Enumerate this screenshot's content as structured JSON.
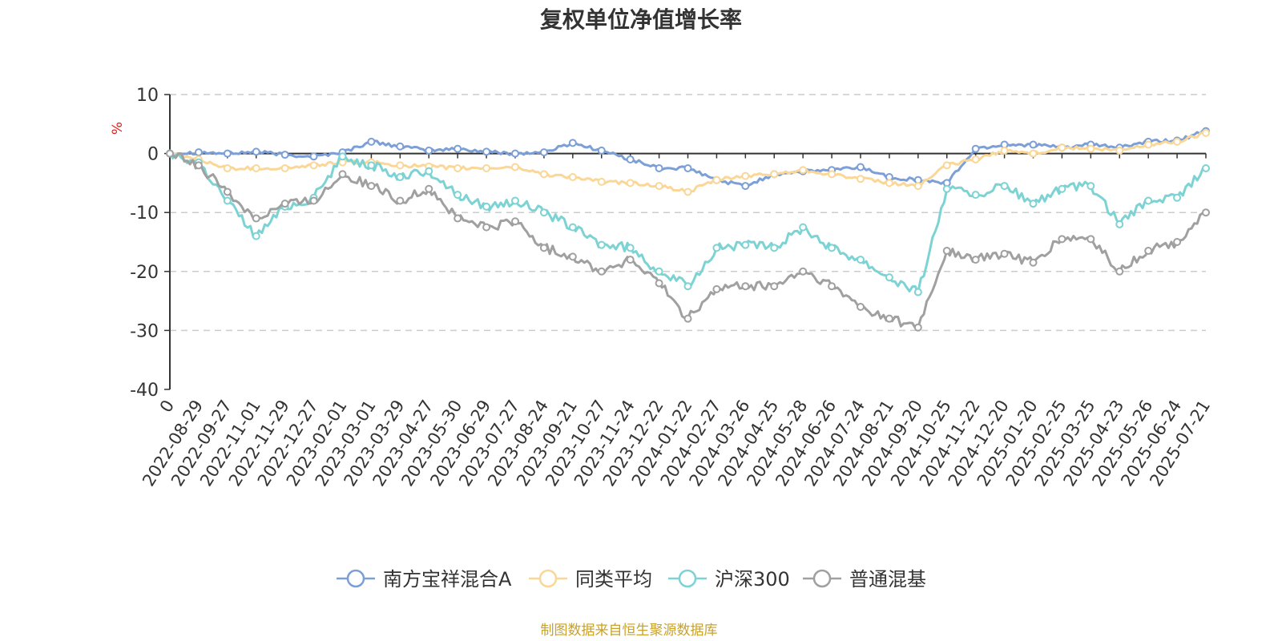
{
  "chart_data": {
    "type": "line",
    "title": "复权单位净值增长率",
    "y_unit": "%",
    "ylim": [
      -40,
      10
    ],
    "yticks": [
      10,
      0,
      -10,
      -20,
      -30,
      -40
    ],
    "grid": true,
    "legend_position": "bottom-center",
    "x_tick_labels": [
      "0",
      "2022-08-29",
      "2022-09-27",
      "2022-11-01",
      "2022-11-29",
      "2022-12-27",
      "2023-02-01",
      "2023-03-01",
      "2023-03-29",
      "2023-04-27",
      "2023-05-30",
      "2023-06-29",
      "2023-07-27",
      "2023-08-24",
      "2023-09-21",
      "2023-10-27",
      "2023-11-24",
      "2023-12-22",
      "2024-01-22",
      "2024-02-27",
      "2024-03-26",
      "2024-04-25",
      "2024-05-28",
      "2024-06-26",
      "2024-07-24",
      "2024-08-21",
      "2024-09-20",
      "2024-10-25",
      "2024-11-22",
      "2024-12-20",
      "2025-01-20",
      "2025-02-25",
      "2025-03-25",
      "2025-04-23",
      "2025-05-26",
      "2025-06-24",
      "2025-07-21"
    ],
    "series": [
      {
        "name": "南方宝祥混合A",
        "color": "#7b9fd6",
        "values": [
          0,
          0.2,
          0,
          0.3,
          -0.2,
          -0.5,
          0.2,
          2.0,
          1.2,
          0.5,
          0.8,
          0.3,
          0,
          0.2,
          1.8,
          0.5,
          -1.0,
          -2.5,
          -2.5,
          -4.5,
          -5.5,
          -3.5,
          -3.0,
          -2.8,
          -2.3,
          -4.0,
          -4.5,
          -5.0,
          0.8,
          1.5,
          1.5,
          1.0,
          1.5,
          1.0,
          2.0,
          2.2,
          3.8
        ]
      },
      {
        "name": "同类平均",
        "color": "#fad797",
        "values": [
          0,
          -1.0,
          -2.5,
          -2.5,
          -2.5,
          -2.0,
          -1.5,
          -1.5,
          -2.0,
          -2.2,
          -2.5,
          -2.5,
          -2.3,
          -3.5,
          -4.0,
          -4.8,
          -5.0,
          -5.5,
          -6.5,
          -4.5,
          -3.8,
          -3.5,
          -2.8,
          -3.5,
          -4.3,
          -5.0,
          -5.5,
          -2.0,
          -1.0,
          0.5,
          0,
          1.0,
          0.8,
          0.5,
          1.5,
          2.0,
          3.5
        ]
      },
      {
        "name": "沪深300",
        "color": "#7dd3d3",
        "values": [
          0,
          -1.5,
          -8.0,
          -14.0,
          -9.0,
          -7.5,
          -0.5,
          -2.0,
          -4.0,
          -3.0,
          -7.0,
          -9.0,
          -8.0,
          -10.0,
          -12.5,
          -15.5,
          -16.0,
          -20.0,
          -22.5,
          -16.0,
          -15.5,
          -16.0,
          -12.5,
          -16.0,
          -18.0,
          -21.0,
          -23.5,
          -6.0,
          -7.0,
          -5.5,
          -8.5,
          -6.0,
          -5.5,
          -12.0,
          -8.0,
          -7.5,
          -2.5
        ]
      },
      {
        "name": "普通混基",
        "color": "#a0a0a0",
        "values": [
          0,
          -2.0,
          -6.5,
          -11.0,
          -8.5,
          -8.0,
          -3.5,
          -5.5,
          -8.0,
          -6.0,
          -11.0,
          -12.5,
          -11.5,
          -16.0,
          -17.5,
          -20.0,
          -18.0,
          -22.0,
          -28.0,
          -23.0,
          -22.5,
          -22.5,
          -20.0,
          -22.5,
          -26.0,
          -28.0,
          -29.5,
          -16.5,
          -18.0,
          -17.0,
          -18.5,
          -14.5,
          -14.5,
          -20.0,
          -16.5,
          -15.0,
          -10.0
        ]
      }
    ]
  },
  "footer": {
    "source_text": "制图数据来自恒生聚源数据库",
    "source_color": "#c9a227"
  },
  "colors": {
    "unit_label": "#e02020",
    "axis": "#333333",
    "grid": "#cccccc"
  }
}
